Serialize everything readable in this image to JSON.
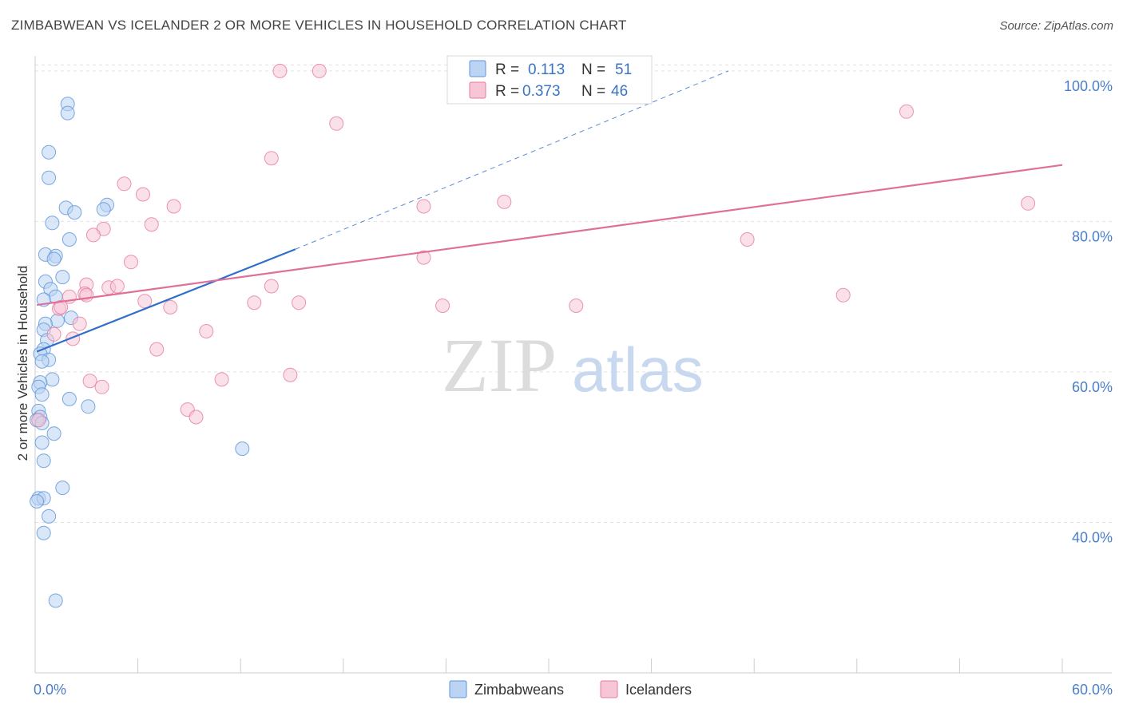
{
  "title": "ZIMBABWEAN VS ICELANDER 2 OR MORE VEHICLES IN HOUSEHOLD CORRELATION CHART",
  "source": "Source: ZipAtlas.com",
  "watermark": {
    "part1": "ZIP",
    "part2": "atlas"
  },
  "colors": {
    "blue": "#5b93d8",
    "blue_fill": "#bcd4f3",
    "blue_line": "#2f6fc9",
    "pink": "#e8799e",
    "pink_fill": "#f6c6d6",
    "pink_line": "#e0709a",
    "grid": "#e2e2e2",
    "tick_label": "#4a7fc9"
  },
  "legend": {
    "rows": [
      {
        "r_label": "R =",
        "r_value": "0.113",
        "n_label": "N =",
        "n_value": "51",
        "series": "Zimbabweans"
      },
      {
        "r_label": "R =",
        "r_value": "0.373",
        "n_label": "N =",
        "n_value": "46",
        "series": "Icelanders"
      }
    ]
  },
  "bottom_legend": [
    "Zimbabweans",
    "Icelanders"
  ],
  "chart_data": {
    "type": "scatter",
    "title": "ZIMBABWEAN VS ICELANDER 2 OR MORE VEHICLES IN HOUSEHOLD CORRELATION CHART",
    "xlabel": "",
    "ylabel": "2 or more Vehicles in Household",
    "xlim": [
      0,
      60
    ],
    "ylim": [
      20,
      102
    ],
    "x_ticks": [
      0,
      6,
      12,
      18,
      24,
      30,
      36,
      42,
      48,
      54,
      60
    ],
    "x_tick_labels": {
      "0": "0.0%",
      "60": "60.0%"
    },
    "y_ticks": [
      40,
      60,
      80,
      100
    ],
    "y_tick_labels": [
      "40.0%",
      "60.0%",
      "80.0%",
      "100.0%"
    ],
    "grid": true,
    "legend_position": "top-center",
    "series": [
      {
        "name": "Zimbabweans",
        "color": "#5b93d8",
        "points": [
          [
            1.9,
            95.6
          ],
          [
            1.9,
            94.4
          ],
          [
            0.8,
            89.2
          ],
          [
            0.8,
            85.8
          ],
          [
            1.8,
            81.8
          ],
          [
            2.3,
            81.2
          ],
          [
            4.2,
            82.2
          ],
          [
            4.0,
            81.6
          ],
          [
            1.0,
            79.8
          ],
          [
            2.0,
            77.6
          ],
          [
            0.6,
            75.6
          ],
          [
            1.2,
            75.4
          ],
          [
            1.1,
            75.0
          ],
          [
            1.6,
            72.6
          ],
          [
            0.6,
            72.0
          ],
          [
            0.9,
            71.0
          ],
          [
            1.2,
            70.0
          ],
          [
            0.5,
            69.6
          ],
          [
            2.1,
            67.2
          ],
          [
            1.3,
            66.8
          ],
          [
            0.6,
            66.4
          ],
          [
            0.5,
            65.6
          ],
          [
            0.7,
            64.2
          ],
          [
            0.5,
            63.0
          ],
          [
            0.3,
            62.4
          ],
          [
            0.8,
            61.6
          ],
          [
            0.4,
            61.4
          ],
          [
            1.0,
            59.0
          ],
          [
            0.3,
            58.6
          ],
          [
            0.2,
            58.0
          ],
          [
            0.4,
            57.0
          ],
          [
            2.0,
            56.4
          ],
          [
            3.1,
            55.4
          ],
          [
            0.2,
            54.8
          ],
          [
            0.3,
            54.0
          ],
          [
            0.1,
            53.6
          ],
          [
            0.4,
            53.2
          ],
          [
            1.1,
            51.8
          ],
          [
            0.4,
            50.6
          ],
          [
            12.1,
            49.8
          ],
          [
            0.5,
            48.2
          ],
          [
            1.6,
            44.6
          ],
          [
            0.2,
            43.2
          ],
          [
            0.5,
            43.2
          ],
          [
            0.1,
            42.8
          ],
          [
            0.8,
            40.8
          ],
          [
            0.5,
            38.6
          ],
          [
            1.2,
            29.6
          ]
        ],
        "trend": {
          "x_start": 0.1,
          "y_start": 62.7,
          "x_end": 15.2,
          "y_end": 76.3,
          "dash_x_end": 40.5,
          "dash_y_end": 100.0
        }
      },
      {
        "name": "Icelanders",
        "color": "#e8799e",
        "points": [
          [
            14.3,
            100.0
          ],
          [
            16.6,
            100.0
          ],
          [
            17.6,
            93.0
          ],
          [
            13.8,
            88.4
          ],
          [
            50.9,
            94.6
          ],
          [
            58.0,
            82.4
          ],
          [
            5.2,
            85.0
          ],
          [
            6.3,
            83.6
          ],
          [
            8.1,
            82.0
          ],
          [
            22.7,
            82.0
          ],
          [
            27.4,
            82.6
          ],
          [
            6.8,
            79.6
          ],
          [
            4.0,
            79.0
          ],
          [
            3.4,
            78.2
          ],
          [
            41.6,
            77.6
          ],
          [
            5.6,
            74.6
          ],
          [
            22.7,
            75.2
          ],
          [
            4.3,
            71.2
          ],
          [
            4.8,
            71.4
          ],
          [
            3.0,
            71.6
          ],
          [
            13.8,
            71.4
          ],
          [
            2.9,
            70.4
          ],
          [
            3.0,
            70.2
          ],
          [
            2.0,
            70.0
          ],
          [
            6.4,
            69.4
          ],
          [
            12.8,
            69.2
          ],
          [
            15.4,
            69.2
          ],
          [
            47.2,
            70.2
          ],
          [
            31.6,
            68.8
          ],
          [
            23.8,
            68.8
          ],
          [
            7.9,
            68.6
          ],
          [
            1.4,
            68.4
          ],
          [
            1.5,
            68.6
          ],
          [
            2.6,
            66.4
          ],
          [
            10.0,
            65.4
          ],
          [
            1.1,
            65.0
          ],
          [
            2.2,
            64.4
          ],
          [
            7.1,
            63.0
          ],
          [
            14.9,
            59.6
          ],
          [
            10.9,
            59.0
          ],
          [
            3.2,
            58.8
          ],
          [
            3.9,
            58.0
          ],
          [
            8.9,
            55.0
          ],
          [
            9.4,
            54.0
          ],
          [
            0.2,
            53.6
          ]
        ],
        "trend": {
          "x_start": 0.1,
          "y_start": 68.9,
          "x_end": 60.0,
          "y_end": 87.5
        }
      }
    ]
  }
}
